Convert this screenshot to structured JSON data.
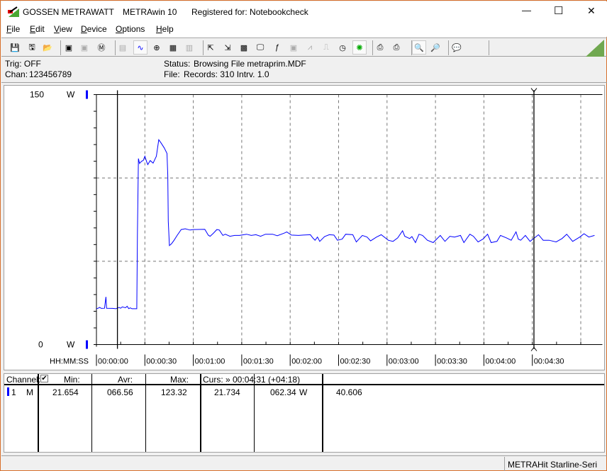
{
  "titlebar": {
    "brand": "GOSSEN METRAWATT",
    "app": "METRAwin 10",
    "registered": "Registered for: Notebookcheck",
    "minimize": "—",
    "maximize": "☐",
    "close": "✕"
  },
  "menu": [
    {
      "label": "File",
      "u": "F",
      "rest": "ile"
    },
    {
      "label": "Edit",
      "u": "E",
      "rest": "dit"
    },
    {
      "label": "View",
      "u": "V",
      "rest": "iew"
    },
    {
      "label": "Device",
      "u": "D",
      "rest": "evice"
    },
    {
      "label": "Options",
      "u": "O",
      "rest": "ptions"
    },
    {
      "label": "Help",
      "u": "H",
      "rest": "elp"
    }
  ],
  "toolbar": {
    "icons": [
      "save-icon",
      "save-as-icon",
      "open-icon",
      "device-read-icon",
      "device-transfer-icon",
      "device-memory-icon",
      "numeric-display-icon",
      "waveform-display-icon",
      "crosshair-icon",
      "table-icon",
      "bar-chart-icon",
      "export-icon",
      "import-icon",
      "binary-icon",
      "monitor-icon",
      "function-icon",
      "device-icon",
      "pulse-icon",
      "square-wave-icon",
      "clock-icon",
      "bug-icon",
      "print-preview-icon",
      "print-icon",
      "zoom-waveform-icon",
      "zoom-curve-icon",
      "comment-icon"
    ],
    "active": [
      "waveform-display-icon",
      "bug-icon",
      "zoom-waveform-icon"
    ],
    "disabled": [
      "device-transfer-icon",
      "numeric-display-icon",
      "bar-chart-icon",
      "device-icon",
      "pulse-icon",
      "square-wave-icon"
    ]
  },
  "info": {
    "trig": "Trig: OFF",
    "chan_label": "Chan:",
    "chan": "123456789",
    "status_label": "Status:",
    "status": "Browsing File metraprim.MDF",
    "file_label": "File:",
    "file": "Records: 310  Intrv. 1.0"
  },
  "chart_data": {
    "type": "line",
    "ylabel_top": "150",
    "yunit_top": "W",
    "ylabel_bottom": "0",
    "yunit_bottom": "W",
    "ylim": [
      0,
      150
    ],
    "xlim": [
      0,
      309
    ],
    "xaxis_label": "HH:MM:SS",
    "xticks": [
      "00:00:00",
      "00:00:30",
      "00:01:00",
      "00:01:30",
      "00:02:00",
      "00:02:30",
      "00:03:00",
      "00:03:30",
      "00:04:00",
      "00:04:30"
    ],
    "grid": true,
    "cursors_s": [
      13,
      271
    ],
    "color": "#0000ff",
    "series": [
      {
        "points": [
          [
            0,
            21.5
          ],
          [
            1,
            21.8
          ],
          [
            2,
            22.3
          ],
          [
            3,
            21.7
          ],
          [
            5,
            21.8
          ],
          [
            5.9,
            28.6
          ],
          [
            6.3,
            21.8
          ],
          [
            10,
            21.7
          ],
          [
            12,
            21.5
          ],
          [
            14,
            22.3
          ],
          [
            15,
            21.8
          ],
          [
            16,
            22.6
          ],
          [
            18,
            22.1
          ],
          [
            19,
            23.0
          ],
          [
            20,
            21.6
          ],
          [
            21,
            22.0
          ],
          [
            22,
            21.5
          ],
          [
            25,
            21.5
          ],
          [
            25.4,
            66.5
          ],
          [
            26,
            111.6
          ],
          [
            26.7,
            108.7
          ],
          [
            28,
            110.0
          ],
          [
            29,
            110.5
          ],
          [
            30,
            113
          ],
          [
            31,
            110
          ],
          [
            31.8,
            108
          ],
          [
            33.3,
            110.4
          ],
          [
            35.1,
            108.9
          ],
          [
            37.1,
            113
          ],
          [
            38.6,
            122.9
          ],
          [
            40,
            121
          ],
          [
            42,
            118
          ],
          [
            43.7,
            114.7
          ],
          [
            44.2,
            101.6
          ],
          [
            44.5,
            74
          ],
          [
            45.2,
            59.4
          ],
          [
            46.5,
            60.5
          ],
          [
            48.1,
            62.6
          ],
          [
            50,
            65.5
          ],
          [
            52.5,
            69
          ],
          [
            55,
            69.5
          ],
          [
            58,
            68.7
          ],
          [
            60,
            69
          ],
          [
            67.1,
            69.2
          ],
          [
            69.3,
            65.6
          ],
          [
            70.4,
            65
          ],
          [
            72.5,
            66.9
          ],
          [
            74.6,
            69.0
          ],
          [
            76.1,
            68.7
          ],
          [
            78.3,
            65.5
          ],
          [
            79.8,
            66.2
          ],
          [
            82.7,
            65.0
          ],
          [
            85.6,
            65.5
          ],
          [
            88.6,
            65.5
          ],
          [
            93.0,
            66.2
          ],
          [
            95.9,
            65.5
          ],
          [
            98.8,
            65.9
          ],
          [
            101.7,
            65.0
          ],
          [
            104.7,
            66.2
          ],
          [
            109.1,
            66.2
          ],
          [
            112.0,
            65.3
          ],
          [
            116.4,
            66.9
          ],
          [
            117.9,
            67.6
          ],
          [
            120.8,
            65.7
          ],
          [
            125.2,
            65.5
          ],
          [
            128.1,
            65.7
          ],
          [
            132.5,
            65.9
          ],
          [
            134.0,
            64.0
          ],
          [
            135.4,
            62.6
          ],
          [
            136.9,
            64.5
          ],
          [
            138.3,
            61.9
          ],
          [
            141.3,
            64.8
          ],
          [
            144.2,
            65.9
          ],
          [
            147.1,
            65.7
          ],
          [
            149.3,
            62.6
          ],
          [
            152.2,
            63.3
          ],
          [
            154.4,
            66.2
          ],
          [
            158.8,
            65.9
          ],
          [
            161.0,
            61.6
          ],
          [
            164.7,
            65.5
          ],
          [
            167.6,
            64.5
          ],
          [
            169.8,
            62.2
          ],
          [
            173.5,
            64.5
          ],
          [
            176.4,
            65.9
          ],
          [
            180.8,
            62.6
          ],
          [
            183.7,
            61.9
          ],
          [
            186.6,
            64.0
          ],
          [
            189.6,
            68.3
          ],
          [
            191.0,
            65.0
          ],
          [
            194.0,
            63.6
          ],
          [
            195.4,
            64.8
          ],
          [
            197.6,
            61.2
          ],
          [
            199.8,
            66.2
          ],
          [
            202.0,
            65.5
          ],
          [
            205.0,
            62.6
          ],
          [
            208.6,
            61.2
          ],
          [
            213.0,
            65.5
          ],
          [
            215.9,
            61.9
          ],
          [
            218.9,
            65.0
          ],
          [
            221.8,
            64.5
          ],
          [
            225.5,
            65.5
          ],
          [
            227.6,
            61.2
          ],
          [
            231.3,
            66.2
          ],
          [
            233.5,
            65.0
          ],
          [
            236.4,
            61.6
          ],
          [
            239.4,
            63.3
          ],
          [
            242.3,
            66.2
          ],
          [
            244.5,
            61.2
          ],
          [
            248.1,
            61.9
          ],
          [
            250.3,
            65.5
          ],
          [
            254.0,
            64.0
          ],
          [
            256.9,
            62.6
          ],
          [
            259.9,
            67.6
          ],
          [
            261.3,
            63.3
          ],
          [
            262.8,
            62.6
          ],
          [
            265.7,
            65.5
          ],
          [
            268.6,
            61.9
          ],
          [
            273.8,
            65.9
          ],
          [
            276.7,
            62.6
          ],
          [
            280.4,
            62.6
          ],
          [
            284.7,
            61.6
          ],
          [
            288.4,
            63.6
          ],
          [
            291.3,
            66.2
          ],
          [
            295.0,
            61.9
          ],
          [
            299.4,
            64.5
          ],
          [
            302,
            66.5
          ],
          [
            305,
            64.5
          ],
          [
            308.5,
            65.5
          ]
        ]
      }
    ]
  },
  "table": {
    "channel_label": "Channel:",
    "checked": true,
    "min_label": "Min:",
    "avr_label": "Avr:",
    "max_label": "Max:",
    "curs_label": "Curs: » 00:04:31 (+04:18)",
    "rows": [
      {
        "num": "1",
        "mode": "M",
        "min": "21.654",
        "avr": "066.56",
        "max": "123.32",
        "c1": "21.734",
        "c2": "062.34",
        "unit": "W",
        "c3": "40.606"
      }
    ]
  },
  "statusbar": {
    "device": "METRAHit Starline-Seri"
  }
}
